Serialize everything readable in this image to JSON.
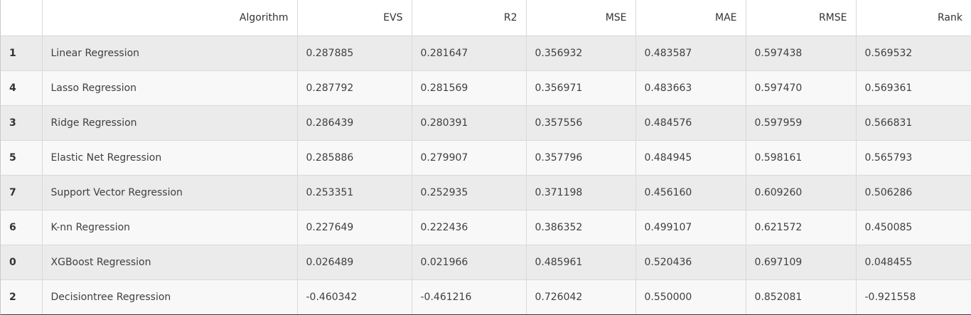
{
  "table": {
    "columns": [
      "",
      "Algorithm",
      "EVS",
      "R2",
      "MSE",
      "MAE",
      "RMSE",
      "Rank"
    ],
    "rows": [
      {
        "index": "1",
        "algorithm": "Linear Regression",
        "evs": "0.287885",
        "r2": "0.281647",
        "mse": "0.356932",
        "mae": "0.483587",
        "rmse": "0.597438",
        "rank": "0.569532"
      },
      {
        "index": "4",
        "algorithm": "Lasso Regression",
        "evs": "0.287792",
        "r2": "0.281569",
        "mse": "0.356971",
        "mae": "0.483663",
        "rmse": "0.597470",
        "rank": "0.569361"
      },
      {
        "index": "3",
        "algorithm": "Ridge Regression",
        "evs": "0.286439",
        "r2": "0.280391",
        "mse": "0.357556",
        "mae": "0.484576",
        "rmse": "0.597959",
        "rank": "0.566831"
      },
      {
        "index": "5",
        "algorithm": "Elastic Net Regression",
        "evs": "0.285886",
        "r2": "0.279907",
        "mse": "0.357796",
        "mae": "0.484945",
        "rmse": "0.598161",
        "rank": "0.565793"
      },
      {
        "index": "7",
        "algorithm": "Support Vector Regression",
        "evs": "0.253351",
        "r2": "0.252935",
        "mse": "0.371198",
        "mae": "0.456160",
        "rmse": "0.609260",
        "rank": "0.506286"
      },
      {
        "index": "6",
        "algorithm": "K-nn Regression",
        "evs": "0.227649",
        "r2": "0.222436",
        "mse": "0.386352",
        "mae": "0.499107",
        "rmse": "0.621572",
        "rank": "0.450085"
      },
      {
        "index": "0",
        "algorithm": "XGBoost Regression",
        "evs": "0.026489",
        "r2": "0.021966",
        "mse": "0.485961",
        "mae": "0.520436",
        "rmse": "0.697109",
        "rank": "0.048455"
      },
      {
        "index": "2",
        "algorithm": "Decisiontree Regression",
        "evs": "-0.460342",
        "r2": "-0.461216",
        "mse": "0.726042",
        "mae": "0.550000",
        "rmse": "0.852081",
        "rank": "-0.921558"
      }
    ]
  }
}
